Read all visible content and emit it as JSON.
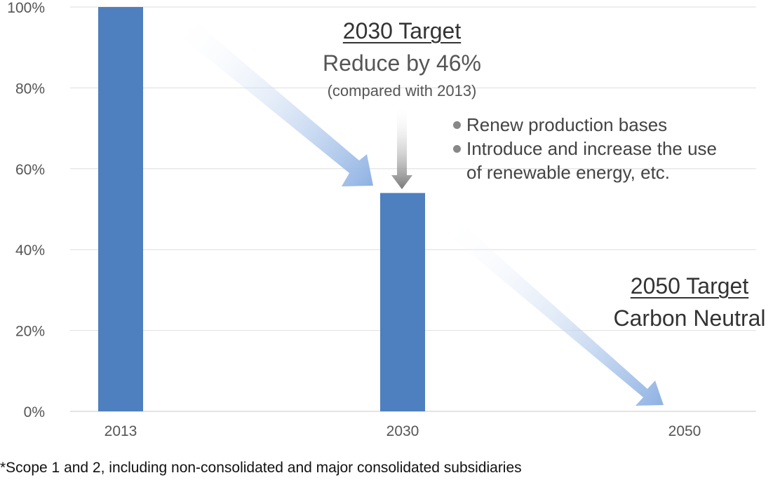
{
  "chart_data": {
    "type": "bar",
    "categories": [
      "2013",
      "2030",
      "2050"
    ],
    "values": [
      100,
      54,
      0
    ],
    "ylim": [
      0,
      100
    ],
    "yticks": [
      0,
      20,
      40,
      60,
      80,
      100
    ],
    "ytick_labels": [
      "0%",
      "20%",
      "40%",
      "60%",
      "80%",
      "100%"
    ],
    "grid": true,
    "bar_color": "#4e7fbe",
    "arrow_color": "#8fb2e3",
    "annotations": {
      "target_2030": {
        "title": "2030 Target",
        "subtitle": "Reduce by 46%",
        "note": "(compared with 2013)",
        "bullets": [
          "Renew production bases",
          "Introduce and increase the use",
          "of renewable energy, etc."
        ]
      },
      "target_2050": {
        "title": "2050 Target",
        "subtitle": "Carbon Neutral"
      }
    },
    "footnote": "*Scope 1 and 2, including non-consolidated and major consolidated subsidiaries"
  }
}
